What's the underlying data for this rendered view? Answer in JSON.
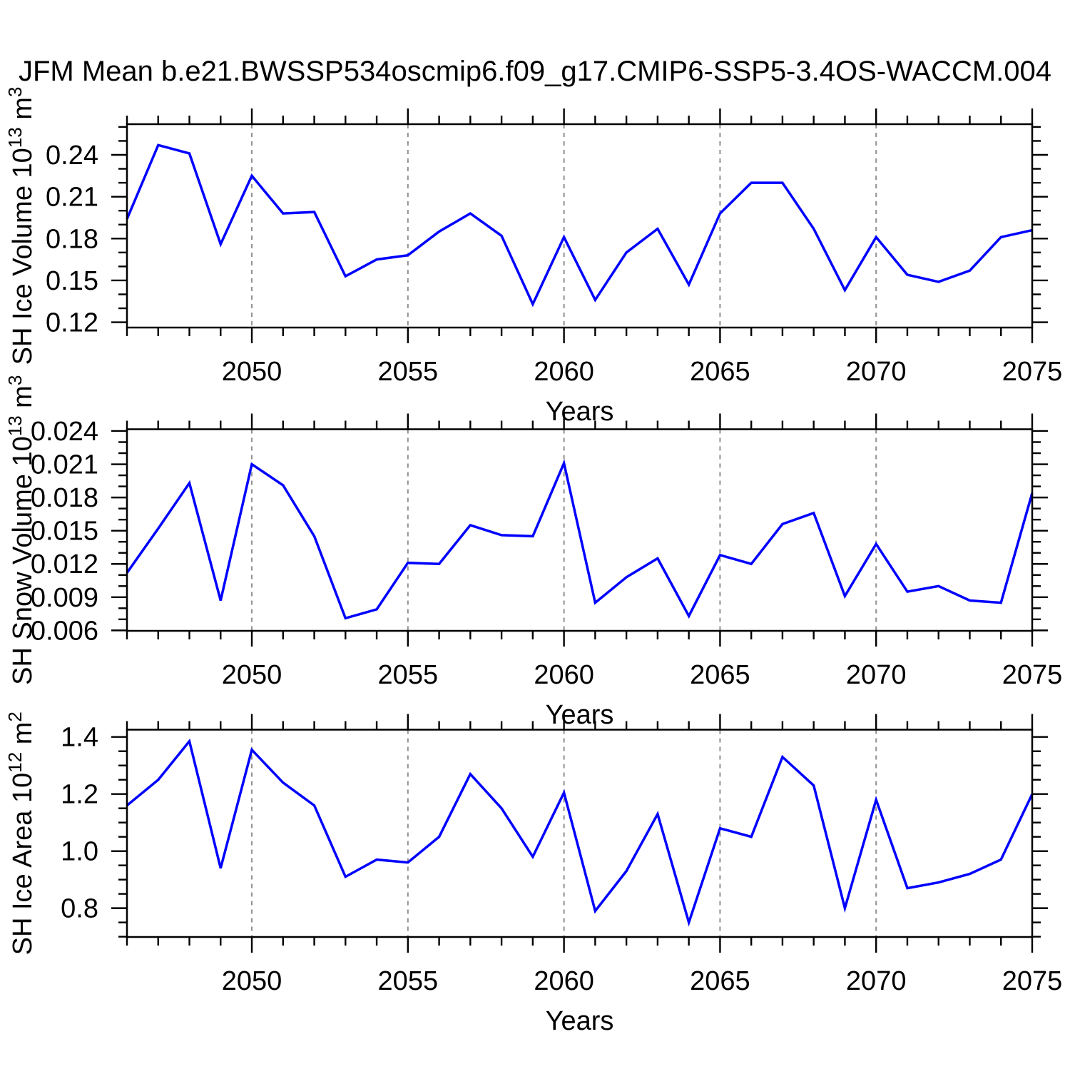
{
  "title": "JFM Mean b.e21.BWSSP534oscmip6.f09_g17.CMIP6-SSP5-3.4OS-WACCM.004",
  "colors": {
    "line": "#0000ff",
    "frame": "#000000",
    "grid": "#909090",
    "text": "#000000",
    "background": "#ffffff"
  },
  "chart_data": [
    {
      "type": "line",
      "name": "sh-ice-volume",
      "ylabel": "SH Ice Volume 10^13 m^3",
      "ylabel_parts": [
        {
          "text": "SH Ice Volume 10"
        },
        {
          "text": "13",
          "sup": true
        },
        {
          "text": " m"
        },
        {
          "text": "3",
          "sup": true
        }
      ],
      "xlabel": "Years",
      "xlim": [
        2046,
        2075
      ],
      "ylim": [
        0.1162,
        0.262
      ],
      "x_ticks": [
        2050,
        2055,
        2060,
        2065,
        2070,
        2075
      ],
      "x_minor_step": 1,
      "yticks": [
        0.12,
        0.15,
        0.18,
        0.21,
        0.24
      ],
      "ytick_labels": [
        "0.12",
        "0.15",
        "0.18",
        "0.21",
        "0.24"
      ],
      "y_minor_step": 0.01,
      "grid": "dashed-vertical-at-major-x",
      "legend": "none",
      "x": [
        2046,
        2047,
        2048,
        2049,
        2050,
        2051,
        2052,
        2053,
        2054,
        2055,
        2056,
        2057,
        2058,
        2059,
        2060,
        2061,
        2062,
        2063,
        2064,
        2065,
        2066,
        2067,
        2068,
        2069,
        2070,
        2071,
        2072,
        2073,
        2074,
        2075
      ],
      "values": [
        0.194,
        0.247,
        0.241,
        0.176,
        0.225,
        0.198,
        0.199,
        0.153,
        0.165,
        0.168,
        0.185,
        0.198,
        0.182,
        0.133,
        0.181,
        0.136,
        0.17,
        0.187,
        0.147,
        0.198,
        0.22,
        0.22,
        0.187,
        0.143,
        0.181,
        0.154,
        0.149,
        0.157,
        0.181,
        0.186
      ]
    },
    {
      "type": "line",
      "name": "sh-snow-volume",
      "ylabel": "SH Snow Volume 10^13 m^3",
      "ylabel_parts": [
        {
          "text": "SH Snow Volume 10"
        },
        {
          "text": "13",
          "sup": true
        },
        {
          "text": " m"
        },
        {
          "text": "3",
          "sup": true
        }
      ],
      "xlabel": "Years",
      "xlim": [
        2046,
        2075
      ],
      "ylim": [
        0.00596,
        0.02416
      ],
      "x_ticks": [
        2050,
        2055,
        2060,
        2065,
        2070,
        2075
      ],
      "x_minor_step": 1,
      "yticks": [
        0.006,
        0.009,
        0.012,
        0.015,
        0.018,
        0.021,
        0.024
      ],
      "ytick_labels": [
        "0.006",
        "0.009",
        "0.012",
        "0.015",
        "0.018",
        "0.021",
        "0.024"
      ],
      "y_minor_step": 0.001,
      "grid": "dashed-vertical-at-major-x",
      "legend": "none",
      "x": [
        2046,
        2047,
        2048,
        2049,
        2050,
        2051,
        2052,
        2053,
        2054,
        2055,
        2056,
        2057,
        2058,
        2059,
        2060,
        2061,
        2062,
        2063,
        2064,
        2065,
        2066,
        2067,
        2068,
        2069,
        2070,
        2071,
        2072,
        2073,
        2074,
        2075
      ],
      "values": [
        0.0112,
        0.0152,
        0.0193,
        0.0087,
        0.021,
        0.0191,
        0.0145,
        0.0071,
        0.0079,
        0.0121,
        0.012,
        0.0155,
        0.0146,
        0.0145,
        0.0211,
        0.0085,
        0.0108,
        0.0125,
        0.0073,
        0.0128,
        0.012,
        0.0156,
        0.0166,
        0.0091,
        0.0138,
        0.0095,
        0.01,
        0.0087,
        0.0085,
        0.0184
      ]
    },
    {
      "type": "line",
      "name": "sh-ice-area",
      "ylabel": "SH Ice Area 10^12 m^2",
      "ylabel_parts": [
        {
          "text": "SH Ice Area 10"
        },
        {
          "text": "12",
          "sup": true
        },
        {
          "text": " m"
        },
        {
          "text": "2",
          "sup": true
        }
      ],
      "xlabel": "Years",
      "xlim": [
        2046,
        2075
      ],
      "ylim": [
        0.699,
        1.4255
      ],
      "x_ticks": [
        2050,
        2055,
        2060,
        2065,
        2070,
        2075
      ],
      "x_minor_step": 1,
      "yticks": [
        0.8,
        1.0,
        1.2,
        1.4
      ],
      "ytick_labels": [
        "0.8",
        "1.0",
        "1.2",
        "1.4"
      ],
      "y_minor_step": 0.05,
      "grid": "dashed-vertical-at-major-x",
      "legend": "none",
      "x": [
        2046,
        2047,
        2048,
        2049,
        2050,
        2051,
        2052,
        2053,
        2054,
        2055,
        2056,
        2057,
        2058,
        2059,
        2060,
        2061,
        2062,
        2063,
        2064,
        2065,
        2066,
        2067,
        2068,
        2069,
        2070,
        2071,
        2072,
        2073,
        2074,
        2075
      ],
      "values": [
        1.16,
        1.25,
        1.385,
        0.94,
        1.355,
        1.24,
        1.16,
        0.91,
        0.97,
        0.96,
        1.05,
        1.27,
        1.15,
        0.98,
        1.205,
        0.79,
        0.93,
        1.13,
        0.75,
        1.08,
        1.05,
        1.33,
        1.23,
        0.8,
        1.18,
        0.87,
        0.89,
        0.92,
        0.97,
        1.2
      ]
    }
  ]
}
